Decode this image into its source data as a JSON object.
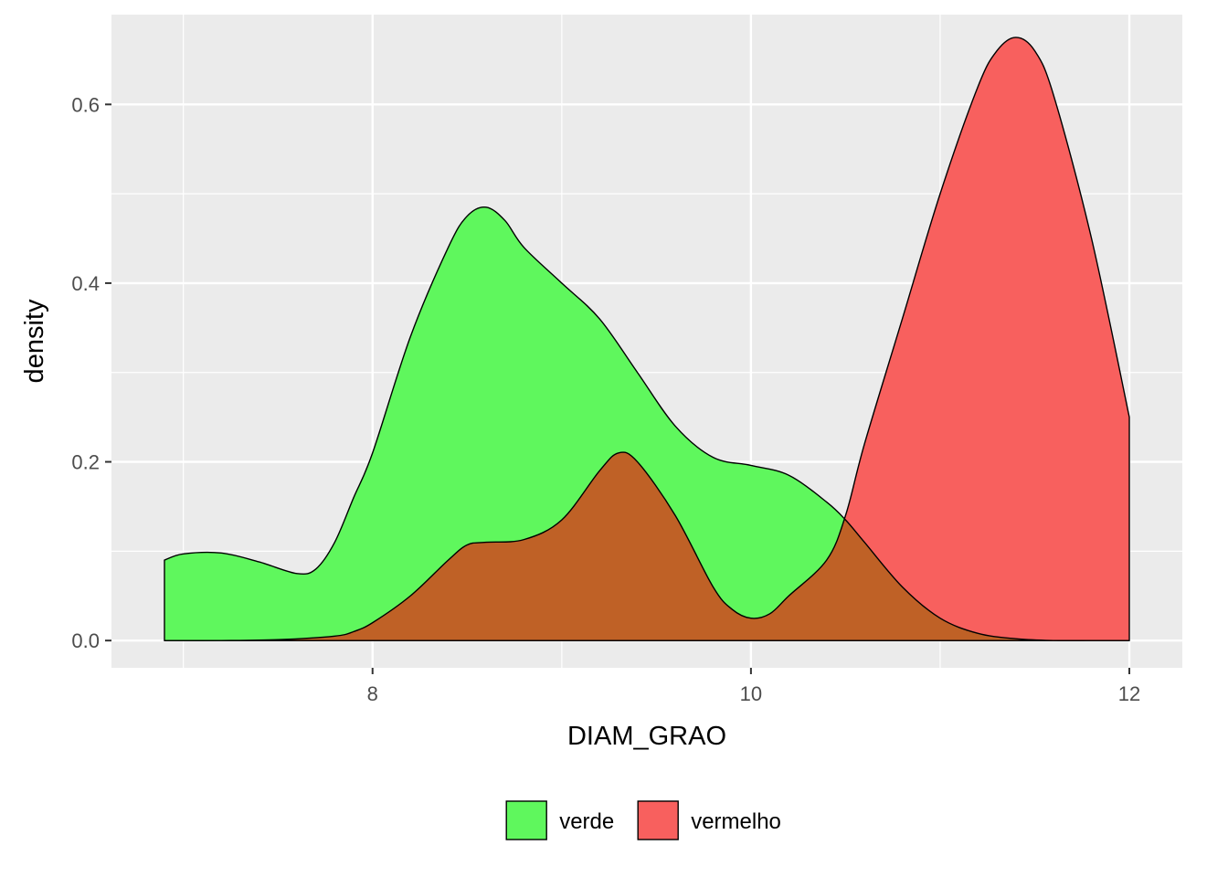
{
  "chart_data": {
    "type": "area",
    "title": "",
    "xlabel": "DIAM_GRAO",
    "ylabel": "density",
    "xlim": [
      6.62,
      12.28
    ],
    "ylim": [
      -0.0305,
      0.7005
    ],
    "x_ticks": [
      8,
      10,
      12
    ],
    "x_tick_labels": [
      "8",
      "10",
      "12"
    ],
    "y_ticks": [
      0.0,
      0.2,
      0.4,
      0.6
    ],
    "y_tick_labels": [
      "0.0",
      "0.2",
      "0.4",
      "0.6"
    ],
    "grid": true,
    "legend_position": "bottom",
    "background_color": "#ebebeb",
    "grid_color": "#ffffff",
    "series": [
      {
        "name": "verde",
        "color": "#5ff75d",
        "x": [
          6.9,
          7.0,
          7.2,
          7.4,
          7.6,
          7.7,
          7.8,
          7.9,
          8.0,
          8.2,
          8.4,
          8.5,
          8.6,
          8.7,
          8.8,
          9.0,
          9.2,
          9.4,
          9.6,
          9.8,
          10.0,
          10.2,
          10.4,
          10.5,
          10.6,
          10.8,
          11.0,
          11.2,
          11.4,
          11.6,
          11.8,
          12.0
        ],
        "y": [
          0.09,
          0.097,
          0.098,
          0.088,
          0.075,
          0.08,
          0.11,
          0.16,
          0.21,
          0.34,
          0.44,
          0.475,
          0.485,
          0.47,
          0.44,
          0.4,
          0.36,
          0.3,
          0.24,
          0.205,
          0.196,
          0.185,
          0.155,
          0.135,
          0.11,
          0.06,
          0.025,
          0.008,
          0.002,
          0.0,
          0.0,
          0.0
        ]
      },
      {
        "name": "vermelho",
        "color": "#f8605e",
        "x": [
          6.9,
          7.2,
          7.5,
          7.8,
          7.9,
          8.0,
          8.2,
          8.4,
          8.5,
          8.6,
          8.8,
          9.0,
          9.2,
          9.3,
          9.4,
          9.6,
          9.8,
          9.9,
          10.0,
          10.1,
          10.2,
          10.4,
          10.5,
          10.6,
          10.8,
          11.0,
          11.2,
          11.3,
          11.4,
          11.5,
          11.6,
          11.8,
          12.0
        ],
        "y": [
          0.0,
          0.0,
          0.001,
          0.005,
          0.01,
          0.02,
          0.05,
          0.09,
          0.107,
          0.11,
          0.113,
          0.135,
          0.19,
          0.21,
          0.2,
          0.14,
          0.06,
          0.035,
          0.025,
          0.03,
          0.05,
          0.09,
          0.14,
          0.22,
          0.36,
          0.5,
          0.62,
          0.66,
          0.675,
          0.66,
          0.61,
          0.45,
          0.25
        ]
      }
    ],
    "overlap_color": "#bf6126"
  }
}
